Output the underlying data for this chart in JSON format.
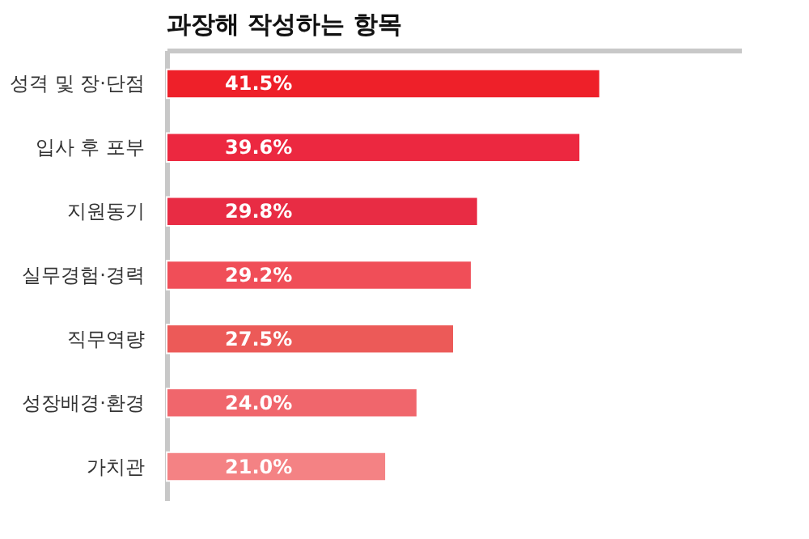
{
  "chart_data": {
    "type": "bar",
    "orientation": "horizontal",
    "title": "과장해 작성하는 항목",
    "categories": [
      "성격 및 장·단점",
      "입사 후 포부",
      "지원동기",
      "실무경험·경력",
      "직무역량",
      "성장배경·환경",
      "가치관"
    ],
    "values": [
      41.5,
      39.6,
      29.8,
      29.2,
      27.5,
      24.0,
      21.0
    ],
    "colors": [
      "#ee2029",
      "#ec2840",
      "#e82c44",
      "#f04e58",
      "#ec5a58",
      "#f0666c",
      "#f48284"
    ],
    "value_labels": [
      "41.5%",
      "39.6%",
      "29.8%",
      "29.2%",
      "27.5%",
      "24.0%",
      "21.0%"
    ],
    "xlim": [
      0,
      55
    ],
    "tick_labels": "y"
  }
}
